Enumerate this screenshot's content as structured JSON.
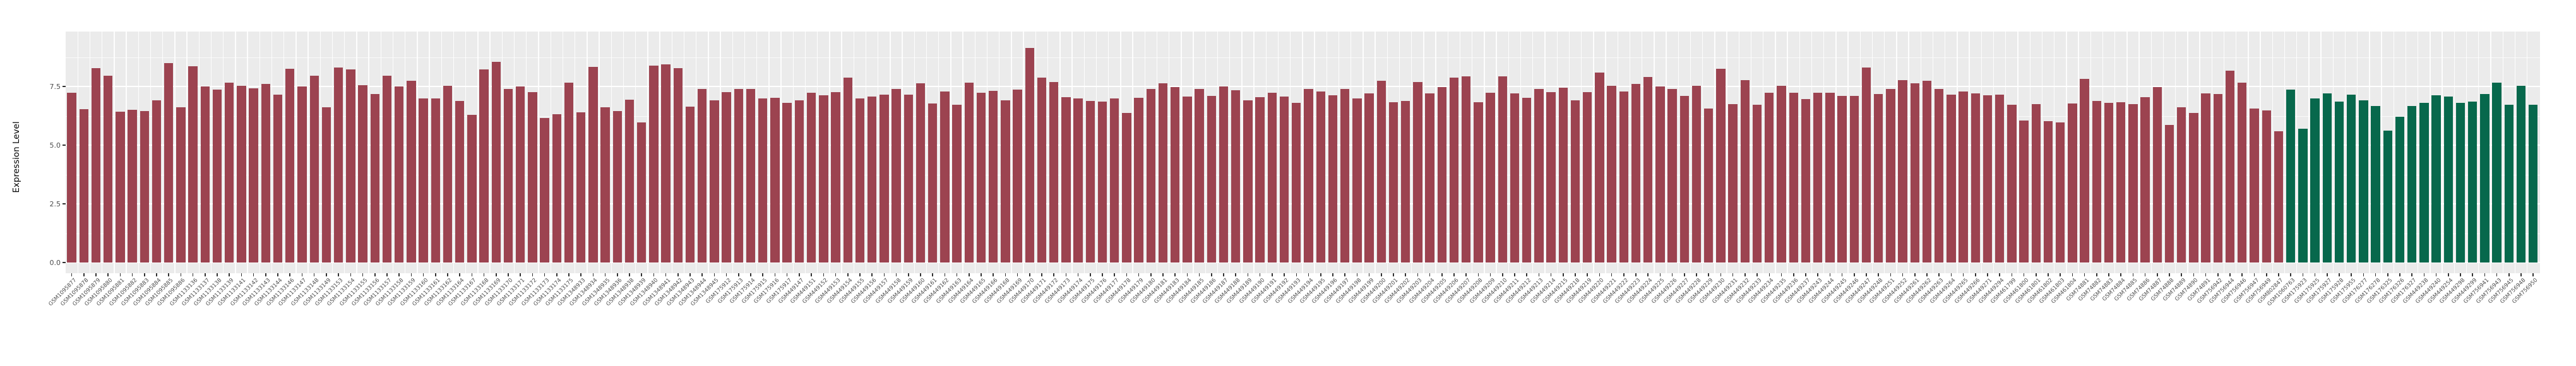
{
  "chart_data": {
    "type": "bar",
    "title": "",
    "xlabel": "",
    "ylabel": "Expression Level",
    "ylim": [
      0,
      9.85
    ],
    "yticks": [
      0.0,
      2.5,
      5.0,
      7.5
    ],
    "ytick_labels": [
      "0.0",
      "2.5",
      "5.0",
      "7.5"
    ],
    "yticks_minor": [
      1.25,
      3.75,
      6.25,
      8.75
    ],
    "grid": true,
    "legend": false,
    "plot_bg_color": "#EBEBEB",
    "grid_color": "#FFFFFF",
    "axis_text_color": "#4D4D4D",
    "bar_color_primary": "#9C4350",
    "bar_color_secondary": "#07684C",
    "secondary_color_from_index": 183,
    "categories": [
      "GSM1095877",
      "GSM1095878",
      "GSM1095879",
      "GSM1095880",
      "GSM1095881",
      "GSM1095882",
      "GSM1095883",
      "GSM1095884",
      "GSM1095885",
      "GSM1095886",
      "GSM1133136",
      "GSM1133137",
      "GSM1133138",
      "GSM1133139",
      "GSM1133141",
      "GSM1133142",
      "GSM1133143",
      "GSM1133144",
      "GSM1133146",
      "GSM1133147",
      "GSM1133148",
      "GSM1133149",
      "GSM1133153",
      "GSM1133154",
      "GSM1133155",
      "GSM1133156",
      "GSM1133157",
      "GSM1133158",
      "GSM1133159",
      "GSM1133160",
      "GSM1133161",
      "GSM1133162",
      "GSM1133164",
      "GSM1133167",
      "GSM1133168",
      "GSM1133169",
      "GSM1133170",
      "GSM1133171",
      "GSM1133172",
      "GSM1133173",
      "GSM1133174",
      "GSM1133175",
      "GSM1348933",
      "GSM1348934",
      "GSM1348935",
      "GSM1348936",
      "GSM1348938",
      "GSM1348939",
      "GSM1348940",
      "GSM1348941",
      "GSM1348942",
      "GSM1348943",
      "GSM1348944",
      "GSM1348945",
      "GSM175912",
      "GSM175913",
      "GSM175914",
      "GSM175915",
      "GSM175916",
      "GSM175917",
      "GSM449147",
      "GSM449151",
      "GSM449152",
      "GSM449153",
      "GSM449154",
      "GSM449155",
      "GSM449156",
      "GSM449157",
      "GSM449158",
      "GSM449159",
      "GSM449160",
      "GSM449161",
      "GSM449162",
      "GSM449163",
      "GSM449164",
      "GSM449165",
      "GSM449166",
      "GSM449168",
      "GSM449169",
      "GSM449170",
      "GSM449171",
      "GSM449172",
      "GSM449173",
      "GSM449174",
      "GSM449175",
      "GSM449176",
      "GSM449177",
      "GSM449178",
      "GSM449179",
      "GSM449180",
      "GSM449181",
      "GSM449183",
      "GSM449184",
      "GSM449185",
      "GSM449186",
      "GSM449187",
      "GSM449188",
      "GSM449189",
      "GSM449190",
      "GSM449191",
      "GSM449192",
      "GSM449193",
      "GSM449194",
      "GSM449195",
      "GSM449196",
      "GSM449197",
      "GSM449198",
      "GSM449199",
      "GSM449200",
      "GSM449201",
      "GSM449202",
      "GSM449203",
      "GSM449204",
      "GSM449205",
      "GSM449206",
      "GSM449207",
      "GSM449208",
      "GSM449209",
      "GSM449210",
      "GSM449211",
      "GSM449212",
      "GSM449213",
      "GSM449214",
      "GSM449215",
      "GSM449218",
      "GSM449219",
      "GSM449220",
      "GSM449221",
      "GSM449222",
      "GSM449223",
      "GSM449224",
      "GSM449225",
      "GSM449226",
      "GSM449227",
      "GSM449228",
      "GSM449229",
      "GSM449230",
      "GSM449231",
      "GSM449232",
      "GSM449233",
      "GSM449234",
      "GSM449235",
      "GSM449236",
      "GSM449237",
      "GSM449243",
      "GSM449244",
      "GSM449245",
      "GSM449246",
      "GSM449247",
      "GSM449248",
      "GSM449251",
      "GSM449252",
      "GSM449261",
      "GSM449262",
      "GSM449263",
      "GSM449264",
      "GSM449265",
      "GSM449266",
      "GSM449271",
      "GSM449294",
      "GSM461799",
      "GSM461800",
      "GSM461801",
      "GSM461802",
      "GSM461803",
      "GSM461804",
      "GSM74881",
      "GSM74882",
      "GSM74883",
      "GSM74884",
      "GSM74885",
      "GSM74886",
      "GSM74887",
      "GSM74888",
      "GSM74889",
      "GSM74890",
      "GSM74891",
      "GSM756942",
      "GSM756944",
      "GSM756946",
      "GSM756947",
      "GSM756949",
      "GSM802847",
      "GSM1060763",
      "GSM175923",
      "GSM175925",
      "GSM175927",
      "GSM175928",
      "GSM175955",
      "GSM176277",
      "GSM176278",
      "GSM176325",
      "GSM176326",
      "GSM176327",
      "GSM449238",
      "GSM449240",
      "GSM449254",
      "GSM449298",
      "GSM449299",
      "GSM756941",
      "GSM756943",
      "GSM756945",
      "GSM756948",
      "GSM756950"
    ],
    "values": [
      7.23,
      6.54,
      8.27,
      7.96,
      6.43,
      6.51,
      6.45,
      6.91,
      8.5,
      6.6,
      8.35,
      7.5,
      7.37,
      7.67,
      7.52,
      7.42,
      7.6,
      7.16,
      8.25,
      7.5,
      7.95,
      6.62,
      8.3,
      8.22,
      7.55,
      7.19,
      7.95,
      7.5,
      7.74,
      7.0,
      6.99,
      7.52,
      6.89,
      6.28,
      8.22,
      8.56,
      7.38,
      7.5,
      7.26,
      6.15,
      6.33,
      7.67,
      6.39,
      8.34,
      6.62,
      6.44,
      6.94,
      5.96,
      8.38,
      8.44,
      8.27,
      6.63,
      7.4,
      6.9,
      7.26,
      7.38,
      7.38,
      7.0,
      7.02,
      6.8,
      6.92,
      7.23,
      7.12,
      7.25,
      7.88,
      6.99,
      7.07,
      7.16,
      7.4,
      7.16,
      7.64,
      6.78,
      7.28,
      6.73,
      7.67,
      7.23,
      7.31,
      6.9,
      7.36,
      9.13,
      7.88,
      7.69,
      7.05,
      7.0,
      6.88,
      6.86,
      7.0,
      6.38,
      7.02,
      7.38,
      7.63,
      7.46,
      7.07,
      7.38,
      7.1,
      7.5,
      7.33,
      6.92,
      7.04,
      7.23,
      7.07,
      6.8,
      7.4,
      7.28,
      7.13,
      7.38,
      6.98,
      7.21,
      7.75,
      6.83,
      6.88,
      7.69,
      7.21,
      7.46,
      7.88,
      7.92,
      6.83,
      7.23,
      7.92,
      7.21,
      7.02,
      7.4,
      7.26,
      7.45,
      6.92,
      7.26,
      8.1,
      7.52,
      7.29,
      7.6,
      7.91,
      7.5,
      7.4,
      7.1,
      7.52,
      6.56,
      8.24,
      6.75,
      7.77,
      6.71,
      7.23,
      7.54,
      7.23,
      6.95,
      7.23,
      7.23,
      7.09,
      7.1,
      8.3,
      7.17,
      7.4,
      7.77,
      7.64,
      7.74,
      7.4,
      7.14,
      7.28,
      7.21,
      7.13,
      7.16,
      6.73,
      6.06,
      6.76,
      6.01,
      5.98,
      6.78,
      7.81,
      6.88,
      6.8,
      6.84,
      6.76,
      7.04,
      7.48,
      5.85,
      6.62,
      6.38,
      7.2,
      7.19,
      8.16,
      7.65,
      6.56,
      6.49,
      5.58,
      7.36,
      5.7,
      7.0,
      7.21,
      6.86,
      7.14,
      6.92,
      6.68,
      5.63,
      6.2,
      6.66,
      6.81,
      7.12,
      7.07,
      6.81,
      6.86,
      7.19,
      7.67,
      6.73,
      7.53,
      6.73
    ]
  }
}
